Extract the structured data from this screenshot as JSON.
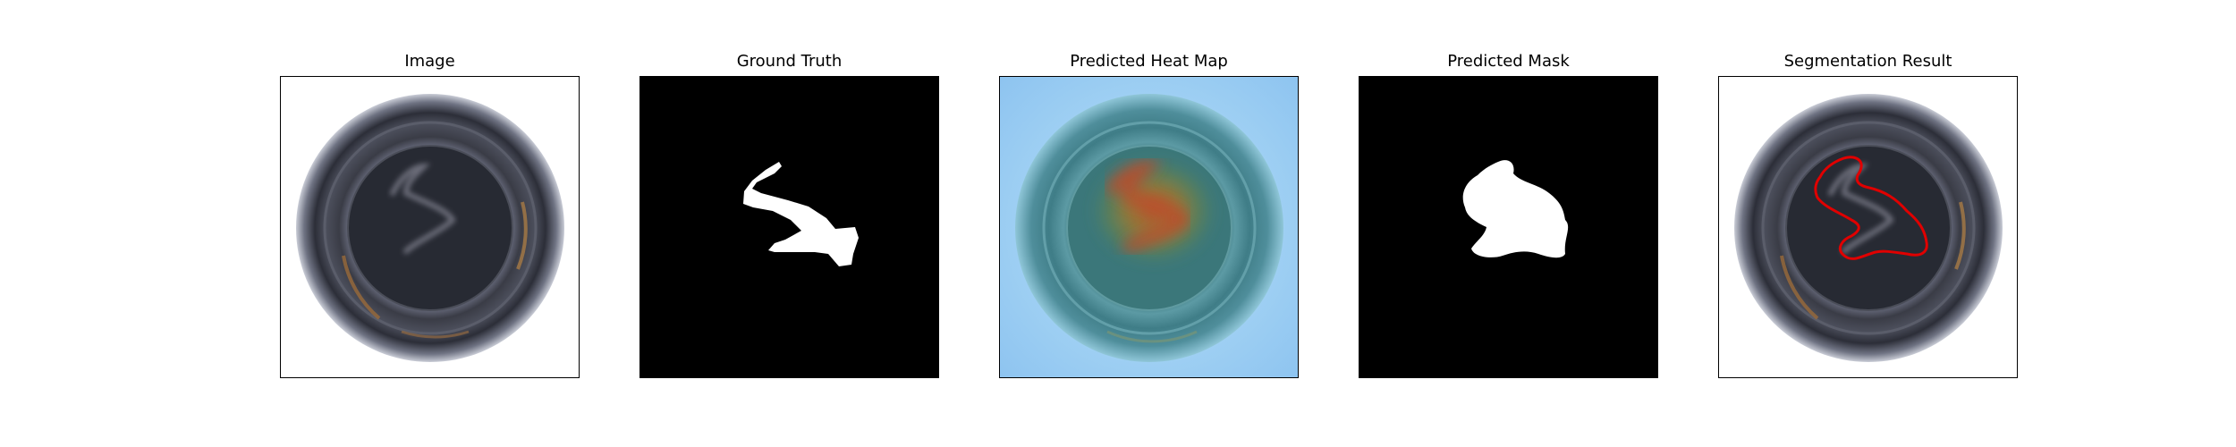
{
  "panels": [
    {
      "title": "Image"
    },
    {
      "title": "Ground Truth"
    },
    {
      "title": "Predicted Heat Map"
    },
    {
      "title": "Predicted Mask"
    },
    {
      "title": "Segmentation Result"
    }
  ],
  "colors": {
    "background": "#ffffff",
    "frame": "#000000",
    "mask_bg": "#000000",
    "mask_fg": "#ffffff",
    "heat_cool": "#9fd3f5",
    "heat_hot": "#c0502a",
    "contour": "#e00000"
  }
}
